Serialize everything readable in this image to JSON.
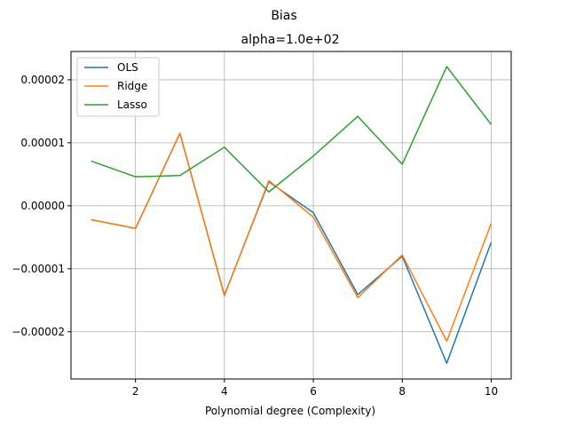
{
  "chart_data": {
    "type": "line",
    "suptitle": "Bias",
    "title": "alpha=1.0e+02",
    "xlabel": "Polynomial degree (Complexity)",
    "ylabel": "",
    "x": [
      1,
      2,
      3,
      4,
      5,
      6,
      7,
      8,
      9,
      10
    ],
    "xlim": [
      0.55,
      10.45
    ],
    "ylim": [
      -2.75e-05,
      2.45e-05
    ],
    "xticks": [
      2,
      4,
      6,
      8,
      10
    ],
    "xtick_labels": [
      "2",
      "4",
      "6",
      "8",
      "10"
    ],
    "yticks": [
      -2e-05,
      -1e-05,
      0,
      1e-05,
      2e-05
    ],
    "ytick_labels": [
      "−0.00002",
      "−0.00001",
      "0.00000",
      "0.00001",
      "0.00002"
    ],
    "grid": true,
    "legend": "upper-left",
    "series": [
      {
        "name": "OLS",
        "color": "#1f77b4",
        "values": [
          -2.2e-06,
          -3.6e-06,
          1.15e-05,
          -1.42e-05,
          3.8e-06,
          -1.1e-06,
          -1.41e-05,
          -8e-06,
          -2.5e-05,
          -5.8e-06
        ]
      },
      {
        "name": "Ridge",
        "color": "#ff7f0e",
        "values": [
          -2.2e-06,
          -3.6e-06,
          1.15e-05,
          -1.43e-05,
          4e-06,
          -1.8e-06,
          -1.46e-05,
          -7.8e-06,
          -2.15e-05,
          -2.8e-06
        ]
      },
      {
        "name": "Lasso",
        "color": "#2ca02c",
        "values": [
          7.1e-06,
          4.6e-06,
          4.8e-06,
          9.3e-06,
          2.2e-06,
          7.9e-06,
          1.42e-05,
          6.6e-06,
          2.21e-05,
          1.29e-05
        ]
      }
    ]
  }
}
